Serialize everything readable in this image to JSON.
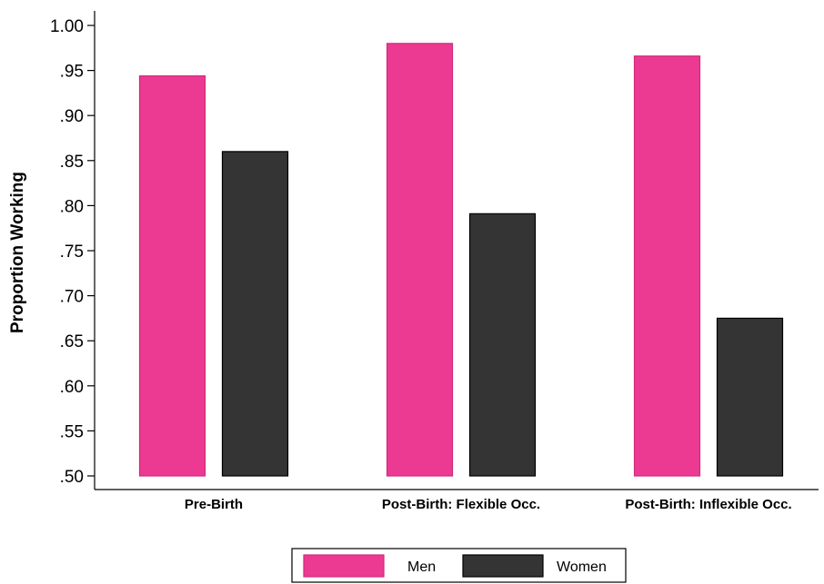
{
  "chart_data": {
    "type": "bar",
    "categories": [
      "Pre-Birth",
      "Post-Birth: Flexible Occ.",
      "Post-Birth: Inflexible Occ."
    ],
    "series": [
      {
        "name": "Men",
        "values": [
          0.944,
          0.98,
          0.966
        ],
        "color": "#ec3a92"
      },
      {
        "name": "Women",
        "values": [
          0.86,
          0.791,
          0.675
        ],
        "color": "#333433"
      }
    ],
    "ylabel": "Proportion Working",
    "xlabel": "",
    "ylim": [
      0.5,
      1.0
    ],
    "yticks": [
      {
        "value": 0.5,
        "label": ".50"
      },
      {
        "value": 0.55,
        "label": ".55"
      },
      {
        "value": 0.6,
        "label": ".60"
      },
      {
        "value": 0.65,
        "label": ".65"
      },
      {
        "value": 0.7,
        "label": ".70"
      },
      {
        "value": 0.75,
        "label": ".75"
      },
      {
        "value": 0.8,
        "label": ".80"
      },
      {
        "value": 0.85,
        "label": ".85"
      },
      {
        "value": 0.9,
        "label": ".90"
      },
      {
        "value": 0.95,
        "label": ".95"
      },
      {
        "value": 1.0,
        "label": "1.00"
      }
    ],
    "grid": false,
    "legend_position": "bottom-center"
  }
}
